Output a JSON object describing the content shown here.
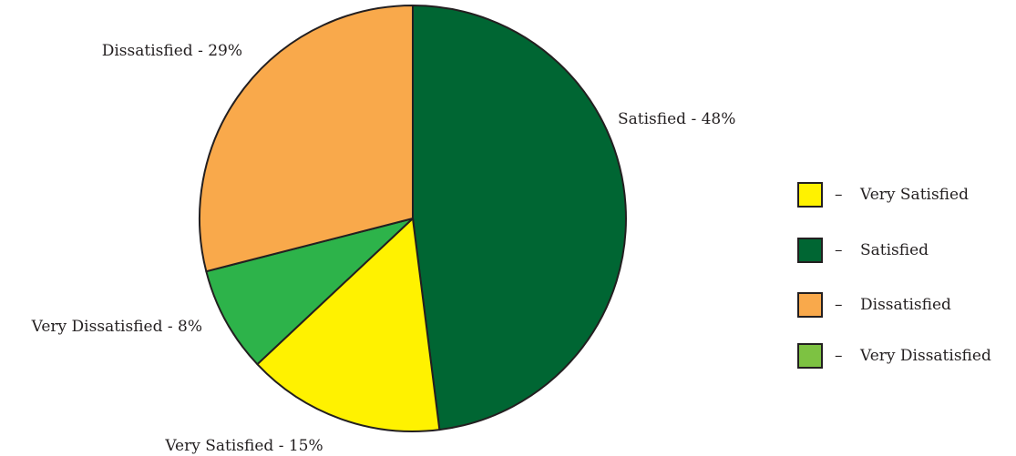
{
  "chart_data": {
    "type": "pie",
    "slices": [
      {
        "name": "Satisfied",
        "value": 48,
        "label": "Satisfied - 48%",
        "color": "#006633"
      },
      {
        "name": "Very Satisfied",
        "value": 15,
        "label": "Very Satisfied - 15%",
        "color": "#fff200"
      },
      {
        "name": "Very Dissatisfied",
        "value": 8,
        "label": "Very Dissatisfied - 8%",
        "color": "#2db34a"
      },
      {
        "name": "Dissatisfied",
        "value": 29,
        "label": "Dissatisfied - 29%",
        "color": "#f9a94b"
      }
    ],
    "legend": [
      {
        "label": "Very Satisfied",
        "color": "#fff200"
      },
      {
        "label": "Satisfied",
        "color": "#006633"
      },
      {
        "label": "Dissatisfied",
        "color": "#f9a94b"
      },
      {
        "label": "Very Dissatisfied",
        "color": "#7dc242"
      }
    ],
    "legend_separator": "–",
    "legend_position": "right",
    "start": "top",
    "direction": "clockwise"
  }
}
